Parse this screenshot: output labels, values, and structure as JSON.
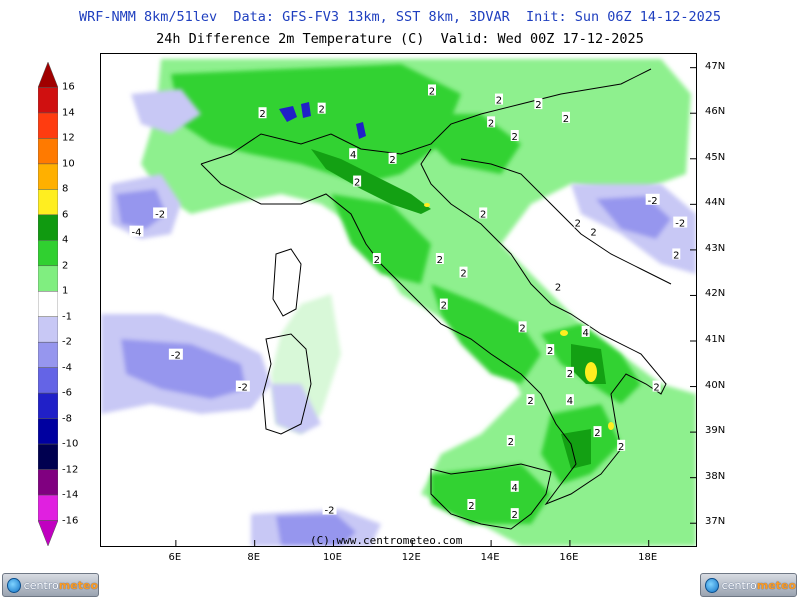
{
  "header": {
    "line1": "WRF-NMM 8km/51lev  Data: GFS-FV3 13km, SST 8km, 3DVAR  Init: Sun 06Z 14-12-2025",
    "line2": "24h Difference 2m Temperature (C)  Valid: Wed 00Z 17-12-2025"
  },
  "copyright": "(C) www.centrometeo.com",
  "latitude_labels": [
    "47N",
    "46N",
    "45N",
    "44N",
    "43N",
    "42N",
    "41N",
    "40N",
    "39N",
    "38N",
    "37N"
  ],
  "longitude_labels": [
    "6E",
    "8E",
    "10E",
    "12E",
    "14E",
    "16E",
    "18E"
  ],
  "colorbar": {
    "labels": [
      "16",
      "14",
      "12",
      "10",
      "8",
      "6",
      "4",
      "2",
      "1",
      "-1",
      "-2",
      "-4",
      "-6",
      "-8",
      "-10",
      "-12",
      "-14",
      "-16"
    ],
    "colors": [
      "#a00000",
      "#d01010",
      "#ff3c10",
      "#ff7a00",
      "#ffb000",
      "#ffee20",
      "#109a10",
      "#30d030",
      "#80ee80",
      "#ffffff",
      "#c8c8f5",
      "#9696ee",
      "#6464e6",
      "#2020c8",
      "#0000a0",
      "#000050",
      "#800080",
      "#e020e0",
      "#c000c0"
    ]
  },
  "contour_labels": [
    {
      "text": "2",
      "lon": 8.2,
      "lat": 46.0
    },
    {
      "text": "2",
      "lon": 9.7,
      "lat": 46.1
    },
    {
      "text": "2",
      "lon": 12.5,
      "lat": 46.5
    },
    {
      "text": "2",
      "lon": 14.2,
      "lat": 46.3
    },
    {
      "text": "2",
      "lon": 15.2,
      "lat": 46.2
    },
    {
      "text": "2",
      "lon": 15.9,
      "lat": 45.9
    },
    {
      "text": "2",
      "lon": 14.0,
      "lat": 45.8
    },
    {
      "text": "2",
      "lon": 14.6,
      "lat": 45.5
    },
    {
      "text": "4",
      "lon": 10.5,
      "lat": 45.1
    },
    {
      "text": "2",
      "lon": 11.5,
      "lat": 45.0
    },
    {
      "text": "2",
      "lon": 10.6,
      "lat": 44.5
    },
    {
      "text": "2",
      "lon": 13.8,
      "lat": 43.8
    },
    {
      "text": "2",
      "lon": 16.2,
      "lat": 43.6
    },
    {
      "text": "2",
      "lon": 16.6,
      "lat": 43.4
    },
    {
      "text": "2",
      "lon": 11.1,
      "lat": 42.8
    },
    {
      "text": "2",
      "lon": 12.7,
      "lat": 42.8
    },
    {
      "text": "2",
      "lon": 13.3,
      "lat": 42.5
    },
    {
      "text": "2",
      "lon": 12.8,
      "lat": 41.8
    },
    {
      "text": "2",
      "lon": 15.7,
      "lat": 42.2
    },
    {
      "text": "2",
      "lon": 14.8,
      "lat": 41.3
    },
    {
      "text": "4",
      "lon": 16.4,
      "lat": 41.2
    },
    {
      "text": "2",
      "lon": 15.5,
      "lat": 40.8
    },
    {
      "text": "2",
      "lon": 16.0,
      "lat": 40.3
    },
    {
      "text": "4",
      "lon": 16.0,
      "lat": 39.7
    },
    {
      "text": "2",
      "lon": 15.0,
      "lat": 39.7
    },
    {
      "text": "2",
      "lon": 14.5,
      "lat": 38.8
    },
    {
      "text": "2",
      "lon": 17.3,
      "lat": 38.7
    },
    {
      "text": "2",
      "lon": 16.7,
      "lat": 39.0
    },
    {
      "text": "2",
      "lon": 18.2,
      "lat": 40.0
    },
    {
      "text": "4",
      "lon": 14.6,
      "lat": 37.8
    },
    {
      "text": "2",
      "lon": 13.5,
      "lat": 37.4
    },
    {
      "text": "2",
      "lon": 14.6,
      "lat": 37.2
    },
    {
      "text": "-2",
      "lon": 5.6,
      "lat": 43.8
    },
    {
      "text": "-4",
      "lon": 5.0,
      "lat": 43.4
    },
    {
      "text": "-2",
      "lon": 18.1,
      "lat": 44.1
    },
    {
      "text": "-2",
      "lon": 18.8,
      "lat": 43.6
    },
    {
      "text": "-2",
      "lon": 6.0,
      "lat": 40.7
    },
    {
      "text": "-2",
      "lon": 7.7,
      "lat": 40.0
    },
    {
      "text": "-2",
      "lon": 9.9,
      "lat": 37.3
    },
    {
      "text": "2",
      "lon": 18.7,
      "lat": 42.9
    }
  ]
}
